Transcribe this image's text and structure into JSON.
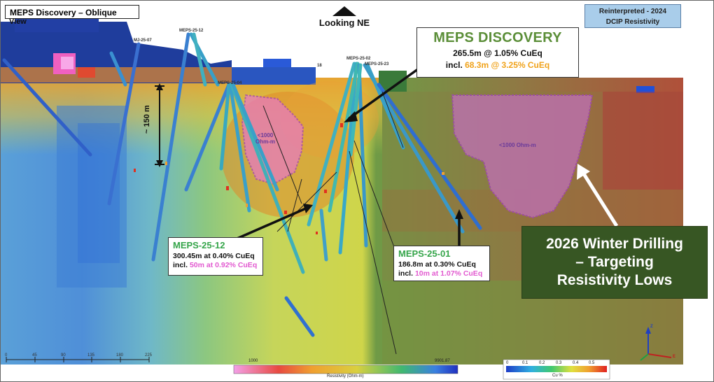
{
  "header": {
    "title": "MEPS Discovery – Oblique",
    "title_wrap": "View",
    "direction": "Looking NE",
    "reinterpreted_line1": "Reinterpreted - 2024",
    "reinterpreted_line2": "DCIP Resistivity"
  },
  "discovery": {
    "title": "MEPS DISCOVERY",
    "line1": "265.5m @ 1.05% CuEq",
    "line2_prefix": "incl. ",
    "line2_value": "68.3m @ 3.25% CuEq"
  },
  "holes": {
    "meps_25_12": {
      "name": "MEPS-25-12",
      "line1": "300.45m at 0.40% CuEq",
      "line2_prefix": "incl. ",
      "line2_value": "50m at 0.92% CuEq"
    },
    "meps_25_01": {
      "name": "MEPS-25-01",
      "line1": "186.8m at 0.30% CuEq",
      "line2_prefix": "incl. ",
      "line2_value": "10m at 1.07% CuEq"
    }
  },
  "winter": {
    "line1": "2026 Winter Drilling",
    "line2": "– Targeting",
    "line3": "Resistivity Lows"
  },
  "annotations": {
    "depth": "~ 150 m",
    "res_low_left_1": "<1000",
    "res_low_left_2": "Ohm-m",
    "res_low_right": "<1000 Ohm-m"
  },
  "collar_labels": [
    "MJ-25-07",
    "MEPS-25-12",
    "MEPS-25-02",
    "MEPS-25-23",
    "MEPS-25-04",
    "18"
  ],
  "scale_bar": {
    "ticks": [
      "0",
      "45",
      "90",
      "135",
      "180",
      "225"
    ]
  },
  "resistivity_bar": {
    "min_label": "1000",
    "max_label": "9901.87",
    "title": "Resistivity (Ohm-m)"
  },
  "cu_bar": {
    "ticks": [
      "0",
      "0.1",
      "0.2",
      "0.3",
      "0.4",
      "0.5"
    ],
    "title": "Cu %"
  },
  "axes": {
    "z": "Z",
    "e": "E"
  },
  "colors": {
    "discovery_green": "#5b8e38",
    "highlight_orange": "#f0a21a",
    "highlight_pink": "#e25ad0",
    "winter_bg": "#375623",
    "hole_name_green": "#35a54a",
    "reint_bg": "#a9cdea"
  }
}
